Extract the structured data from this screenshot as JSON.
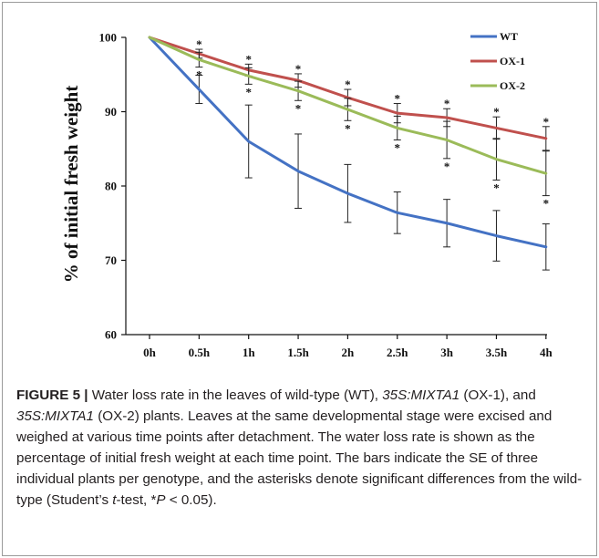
{
  "chart_data": {
    "type": "line",
    "ylabel": "% of initial fresh weight",
    "xlabel": "",
    "title": "",
    "categories": [
      "0h",
      "0.5h",
      "1h",
      "1.5h",
      "2h",
      "2.5h",
      "3h",
      "3.5h",
      "4h"
    ],
    "ylim": [
      60,
      100
    ],
    "yticks": [
      60,
      70,
      80,
      90,
      100
    ],
    "grid": false,
    "legend_position": "top-right",
    "series": [
      {
        "name": "WT",
        "color": "#4472c4",
        "values": [
          100,
          93.0,
          86.0,
          82.0,
          79.0,
          76.4,
          75.0,
          73.3,
          71.8
        ],
        "errors": [
          0,
          1.9,
          4.9,
          5.0,
          3.9,
          2.8,
          3.2,
          3.4,
          3.1
        ],
        "asterisks": [
          false,
          false,
          false,
          false,
          false,
          false,
          false,
          false,
          false
        ]
      },
      {
        "name": "OX-1",
        "color": "#c0504d",
        "values": [
          100,
          97.8,
          95.6,
          94.2,
          91.9,
          89.8,
          89.2,
          87.8,
          86.4
        ],
        "errors": [
          0,
          0.6,
          0.8,
          0.9,
          1.1,
          1.3,
          1.2,
          1.5,
          1.6
        ],
        "asterisks": [
          false,
          true,
          true,
          true,
          true,
          true,
          true,
          true,
          true
        ]
      },
      {
        "name": "OX-2",
        "color": "#9bbb59",
        "values": [
          100,
          97.0,
          94.8,
          92.8,
          90.3,
          87.8,
          86.2,
          83.6,
          81.7
        ],
        "errors": [
          0,
          1.0,
          1.1,
          1.3,
          1.5,
          1.6,
          2.5,
          2.8,
          3.0
        ],
        "asterisks": [
          false,
          true,
          true,
          true,
          true,
          true,
          true,
          true,
          true
        ]
      }
    ],
    "asterisk_symbol": "*"
  },
  "caption": {
    "label": "FIGURE 5 |",
    "text_1": " Water loss rate in the leaves of wild-type (WT), ",
    "construct_1": "35S:MIXTA1",
    "text_2": " (OX-1), and ",
    "construct_2": "35S:MIXTA1",
    "text_3": " (OX-2) plants. Leaves at the same developmental stage were excised and weighed at various time points after detachment. The water loss rate is shown as the percentage of initial fresh weight at each time point. The bars indicate the SE of three individual plants per genotype, and the asterisks denote significant differences from the wild-type (Student’s ",
    "test_t": "t",
    "text_4": "-test, *",
    "p_symbol": "P",
    "text_5": " <  0.05)."
  }
}
